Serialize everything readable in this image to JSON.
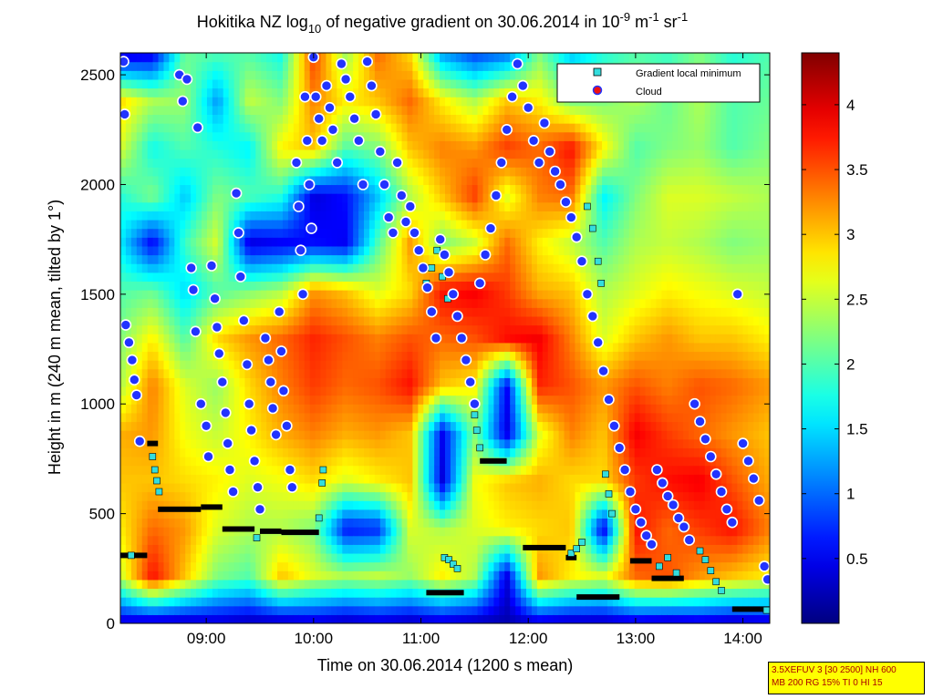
{
  "chart_data": {
    "type": "heatmap",
    "title": {
      "prefix": "Hokitika NZ log",
      "sub": "10",
      "middle": " of negative gradient on 30.06.2014 in 10",
      "sup1": "-9",
      "unit1": " m",
      "sup2": "-1",
      "unit2": " sr",
      "sup3": "-1"
    },
    "xlabel": "Time on 30.06.2014 (1200 s mean)",
    "ylabel": "Height in m (240 m mean, tilted by 1°)",
    "x_range_hours": [
      8.2,
      14.25
    ],
    "ylim": [
      0,
      2600
    ],
    "x_ticks": [
      {
        "value": 9,
        "label": "09:00"
      },
      {
        "value": 10,
        "label": "10:00"
      },
      {
        "value": 11,
        "label": "11:00"
      },
      {
        "value": 12,
        "label": "12:00"
      },
      {
        "value": 13,
        "label": "13:00"
      },
      {
        "value": 14,
        "label": "14:00"
      }
    ],
    "y_ticks": [
      {
        "value": 0,
        "label": "0"
      },
      {
        "value": 500,
        "label": "500"
      },
      {
        "value": 1000,
        "label": "1000"
      },
      {
        "value": 1500,
        "label": "1500"
      },
      {
        "value": 2000,
        "label": "2000"
      },
      {
        "value": 2500,
        "label": "2500"
      }
    ],
    "colorbar": {
      "range": [
        0,
        4.4
      ],
      "ticks": [
        {
          "value": 0.5,
          "label": "0.5"
        },
        {
          "value": 1,
          "label": "1"
        },
        {
          "value": 1.5,
          "label": "1.5"
        },
        {
          "value": 2,
          "label": "2"
        },
        {
          "value": 2.5,
          "label": "2.5"
        },
        {
          "value": 3,
          "label": "3"
        },
        {
          "value": 3.5,
          "label": "3.5"
        },
        {
          "value": 4,
          "label": "4"
        }
      ],
      "colormap": "jet"
    },
    "legend": {
      "position": "top-right",
      "entries": [
        {
          "label": "Gradient local minimum",
          "color": "#33dddd",
          "marker": "square"
        },
        {
          "label": "Cloud",
          "color": "#ee1111",
          "marker": "circle"
        }
      ]
    },
    "column_profiles": [
      {
        "t": 8.2,
        "v": [
          0.3,
          2.5,
          2.8,
          3.0,
          3.1,
          2.4,
          2.2,
          2.0,
          1.6,
          1.8,
          2.6,
          2.9,
          0.3
        ]
      },
      {
        "t": 8.5,
        "v": [
          0.2,
          3.8,
          3.4,
          3.0,
          3.2,
          3.3,
          2.8,
          2.1,
          0.5,
          2.2,
          1.7,
          2.4,
          0.4
        ]
      },
      {
        "t": 8.8,
        "v": [
          0.2,
          3.0,
          3.2,
          2.9,
          2.7,
          2.6,
          2.0,
          1.5,
          1.9,
          1.4,
          2.0,
          2.3,
          2.1
        ]
      },
      {
        "t": 9.1,
        "v": [
          0.3,
          2.2,
          2.6,
          2.8,
          2.5,
          2.3,
          2.9,
          2.0,
          2.6,
          2.2,
          1.8,
          1.2,
          2.0
        ]
      },
      {
        "t": 9.4,
        "v": [
          0.2,
          2.0,
          2.4,
          2.6,
          2.8,
          2.9,
          3.2,
          2.2,
          0.4,
          2.0,
          1.6,
          2.5,
          2.0
        ]
      },
      {
        "t": 9.7,
        "v": [
          0.2,
          3.0,
          2.4,
          2.7,
          3.1,
          3.3,
          3.4,
          2.4,
          0.5,
          1.8,
          2.8,
          2.2,
          1.7
        ]
      },
      {
        "t": 10.0,
        "v": [
          0.3,
          2.6,
          2.2,
          2.9,
          3.3,
          3.6,
          3.7,
          3.2,
          0.6,
          0.4,
          3.0,
          3.3,
          3.6
        ]
      },
      {
        "t": 10.3,
        "v": [
          0.2,
          2.4,
          0.6,
          2.6,
          3.1,
          3.4,
          3.5,
          3.0,
          0.5,
          0.6,
          2.0,
          2.8,
          2.3
        ]
      },
      {
        "t": 10.6,
        "v": [
          0.3,
          2.5,
          0.7,
          2.8,
          3.2,
          3.5,
          3.3,
          2.6,
          2.0,
          1.4,
          2.2,
          3.0,
          3.4
        ]
      },
      {
        "t": 10.9,
        "v": [
          0.2,
          2.3,
          2.6,
          3.0,
          3.0,
          3.8,
          3.5,
          2.9,
          3.2,
          2.4,
          3.0,
          3.4,
          2.9
        ]
      },
      {
        "t": 11.2,
        "v": [
          0.3,
          2.8,
          2.4,
          0.4,
          0.5,
          3.0,
          3.4,
          3.8,
          2.2,
          3.0,
          3.3,
          2.8,
          1.2
        ]
      },
      {
        "t": 11.5,
        "v": [
          0.2,
          2.4,
          2.6,
          2.7,
          2.2,
          2.8,
          3.5,
          3.9,
          2.5,
          3.6,
          3.2,
          2.4,
          0.8
        ]
      },
      {
        "t": 11.8,
        "v": [
          0.2,
          0.4,
          2.8,
          3.0,
          0.4,
          0.5,
          3.8,
          3.6,
          3.4,
          2.6,
          3.6,
          3.0,
          1.0
        ]
      },
      {
        "t": 12.1,
        "v": [
          0.3,
          3.2,
          2.9,
          3.1,
          2.6,
          3.7,
          3.9,
          3.1,
          2.8,
          3.3,
          3.4,
          2.8,
          2.2
        ]
      },
      {
        "t": 12.4,
        "v": [
          0.2,
          2.8,
          3.0,
          2.9,
          3.3,
          3.5,
          3.3,
          3.0,
          2.5,
          3.4,
          3.8,
          2.2,
          1.4
        ]
      },
      {
        "t": 12.7,
        "v": [
          0.2,
          2.6,
          0.4,
          2.9,
          3.0,
          3.2,
          2.6,
          2.4,
          2.0,
          1.6,
          2.8,
          2.2,
          1.8
        ]
      },
      {
        "t": 13.0,
        "v": [
          0.3,
          3.4,
          3.8,
          3.6,
          3.9,
          3.5,
          3.0,
          2.6,
          2.4,
          2.2,
          2.0,
          2.4,
          2.0
        ]
      },
      {
        "t": 13.3,
        "v": [
          0.2,
          3.5,
          3.4,
          3.8,
          3.6,
          3.3,
          3.2,
          2.8,
          2.5,
          2.6,
          2.2,
          2.1,
          1.9
        ]
      },
      {
        "t": 13.6,
        "v": [
          0.3,
          3.2,
          3.6,
          3.9,
          3.4,
          3.5,
          3.0,
          2.7,
          2.4,
          2.6,
          2.3,
          2.4,
          2.2
        ]
      },
      {
        "t": 13.9,
        "v": [
          0.2,
          3.0,
          3.8,
          3.5,
          3.2,
          3.4,
          3.0,
          2.6,
          2.2,
          2.5,
          2.0,
          2.0,
          1.8
        ]
      },
      {
        "t": 14.25,
        "v": [
          0.3,
          2.8,
          3.3,
          3.1,
          3.0,
          3.2,
          2.8,
          2.5,
          2.3,
          2.4,
          2.2,
          2.1,
          2.0
        ]
      }
    ],
    "gradient_minimum_segments": [
      {
        "t0": 8.2,
        "t1": 8.45,
        "h": 310
      },
      {
        "t0": 8.45,
        "t1": 8.55,
        "h": 820
      },
      {
        "t0": 8.55,
        "t1": 8.95,
        "h": 520
      },
      {
        "t0": 8.95,
        "t1": 9.15,
        "h": 530
      },
      {
        "t0": 9.15,
        "t1": 9.45,
        "h": 430
      },
      {
        "t0": 9.5,
        "t1": 9.7,
        "h": 420
      },
      {
        "t0": 9.7,
        "t1": 10.05,
        "h": 415
      },
      {
        "t0": 11.05,
        "t1": 11.4,
        "h": 140
      },
      {
        "t0": 11.55,
        "t1": 11.8,
        "h": 740
      },
      {
        "t0": 11.95,
        "t1": 12.35,
        "h": 345
      },
      {
        "t0": 12.35,
        "t1": 12.45,
        "h": 300
      },
      {
        "t0": 12.45,
        "t1": 12.85,
        "h": 120
      },
      {
        "t0": 12.95,
        "t1": 13.15,
        "h": 285
      },
      {
        "t0": 13.15,
        "t1": 13.45,
        "h": 205
      },
      {
        "t0": 13.9,
        "t1": 14.25,
        "h": 65
      }
    ],
    "gradient_minimum_points": [
      {
        "t": 8.3,
        "h": 310
      },
      {
        "t": 8.5,
        "h": 760
      },
      {
        "t": 8.52,
        "h": 700
      },
      {
        "t": 8.54,
        "h": 650
      },
      {
        "t": 8.56,
        "h": 600
      },
      {
        "t": 9.47,
        "h": 390
      },
      {
        "t": 10.05,
        "h": 480
      },
      {
        "t": 10.08,
        "h": 640
      },
      {
        "t": 10.09,
        "h": 700
      },
      {
        "t": 11.22,
        "h": 300
      },
      {
        "t": 11.26,
        "h": 290
      },
      {
        "t": 11.3,
        "h": 270
      },
      {
        "t": 11.34,
        "h": 250
      },
      {
        "t": 11.5,
        "h": 950
      },
      {
        "t": 11.52,
        "h": 880
      },
      {
        "t": 11.55,
        "h": 800
      },
      {
        "t": 12.4,
        "h": 320
      },
      {
        "t": 12.45,
        "h": 340
      },
      {
        "t": 12.5,
        "h": 370
      },
      {
        "t": 12.72,
        "h": 680
      },
      {
        "t": 12.75,
        "h": 590
      },
      {
        "t": 12.78,
        "h": 500
      },
      {
        "t": 13.22,
        "h": 260
      },
      {
        "t": 13.3,
        "h": 300
      },
      {
        "t": 13.38,
        "h": 230
      },
      {
        "t": 13.6,
        "h": 330
      },
      {
        "t": 13.65,
        "h": 290
      },
      {
        "t": 13.7,
        "h": 240
      },
      {
        "t": 13.75,
        "h": 190
      },
      {
        "t": 13.8,
        "h": 150
      },
      {
        "t": 11.05,
        "h": 1550
      },
      {
        "t": 11.1,
        "h": 1620
      },
      {
        "t": 11.15,
        "h": 1700
      },
      {
        "t": 11.2,
        "h": 1580
      },
      {
        "t": 11.25,
        "h": 1480
      },
      {
        "t": 12.55,
        "h": 1900
      },
      {
        "t": 12.6,
        "h": 1800
      },
      {
        "t": 12.65,
        "h": 1650
      },
      {
        "t": 12.68,
        "h": 1550
      },
      {
        "t": 14.22,
        "h": 60
      }
    ],
    "cloud_points": [
      {
        "t": 8.23,
        "h": 2560
      },
      {
        "t": 8.24,
        "h": 2320
      },
      {
        "t": 8.25,
        "h": 1360
      },
      {
        "t": 8.28,
        "h": 1280
      },
      {
        "t": 8.31,
        "h": 1200
      },
      {
        "t": 8.33,
        "h": 1110
      },
      {
        "t": 8.35,
        "h": 1040
      },
      {
        "t": 8.38,
        "h": 830
      },
      {
        "t": 8.75,
        "h": 2500
      },
      {
        "t": 8.78,
        "h": 2380
      },
      {
        "t": 8.82,
        "h": 2480
      },
      {
        "t": 8.86,
        "h": 1620
      },
      {
        "t": 8.88,
        "h": 1520
      },
      {
        "t": 8.9,
        "h": 1330
      },
      {
        "t": 8.92,
        "h": 2260
      },
      {
        "t": 8.95,
        "h": 1000
      },
      {
        "t": 9.0,
        "h": 900
      },
      {
        "t": 9.02,
        "h": 760
      },
      {
        "t": 9.05,
        "h": 1630
      },
      {
        "t": 9.08,
        "h": 1480
      },
      {
        "t": 9.1,
        "h": 1350
      },
      {
        "t": 9.12,
        "h": 1230
      },
      {
        "t": 9.15,
        "h": 1100
      },
      {
        "t": 9.18,
        "h": 960
      },
      {
        "t": 9.2,
        "h": 820
      },
      {
        "t": 9.22,
        "h": 700
      },
      {
        "t": 9.25,
        "h": 600
      },
      {
        "t": 9.28,
        "h": 1960
      },
      {
        "t": 9.3,
        "h": 1780
      },
      {
        "t": 9.32,
        "h": 1580
      },
      {
        "t": 9.35,
        "h": 1380
      },
      {
        "t": 9.38,
        "h": 1180
      },
      {
        "t": 9.4,
        "h": 1000
      },
      {
        "t": 9.42,
        "h": 880
      },
      {
        "t": 9.45,
        "h": 740
      },
      {
        "t": 9.48,
        "h": 620
      },
      {
        "t": 9.5,
        "h": 520
      },
      {
        "t": 9.55,
        "h": 1300
      },
      {
        "t": 9.58,
        "h": 1200
      },
      {
        "t": 9.6,
        "h": 1100
      },
      {
        "t": 9.62,
        "h": 980
      },
      {
        "t": 9.65,
        "h": 860
      },
      {
        "t": 9.68,
        "h": 1420
      },
      {
        "t": 9.7,
        "h": 1240
      },
      {
        "t": 9.72,
        "h": 1060
      },
      {
        "t": 9.75,
        "h": 900
      },
      {
        "t": 9.78,
        "h": 700
      },
      {
        "t": 9.8,
        "h": 620
      },
      {
        "t": 9.84,
        "h": 2100
      },
      {
        "t": 9.86,
        "h": 1900
      },
      {
        "t": 9.88,
        "h": 1700
      },
      {
        "t": 9.9,
        "h": 1500
      },
      {
        "t": 9.92,
        "h": 2400
      },
      {
        "t": 9.94,
        "h": 2200
      },
      {
        "t": 9.96,
        "h": 2000
      },
      {
        "t": 9.98,
        "h": 1800
      },
      {
        "t": 10.0,
        "h": 2580
      },
      {
        "t": 10.02,
        "h": 2400
      },
      {
        "t": 10.05,
        "h": 2300
      },
      {
        "t": 10.08,
        "h": 2200
      },
      {
        "t": 10.12,
        "h": 2450
      },
      {
        "t": 10.15,
        "h": 2350
      },
      {
        "t": 10.18,
        "h": 2250
      },
      {
        "t": 10.22,
        "h": 2100
      },
      {
        "t": 10.26,
        "h": 2550
      },
      {
        "t": 10.3,
        "h": 2480
      },
      {
        "t": 10.34,
        "h": 2400
      },
      {
        "t": 10.38,
        "h": 2300
      },
      {
        "t": 10.42,
        "h": 2200
      },
      {
        "t": 10.46,
        "h": 2000
      },
      {
        "t": 10.5,
        "h": 2560
      },
      {
        "t": 10.54,
        "h": 2450
      },
      {
        "t": 10.58,
        "h": 2320
      },
      {
        "t": 10.62,
        "h": 2150
      },
      {
        "t": 10.66,
        "h": 2000
      },
      {
        "t": 10.7,
        "h": 1850
      },
      {
        "t": 10.74,
        "h": 1780
      },
      {
        "t": 10.78,
        "h": 2100
      },
      {
        "t": 10.82,
        "h": 1950
      },
      {
        "t": 10.86,
        "h": 1830
      },
      {
        "t": 10.9,
        "h": 1900
      },
      {
        "t": 10.94,
        "h": 1780
      },
      {
        "t": 10.98,
        "h": 1700
      },
      {
        "t": 11.02,
        "h": 1620
      },
      {
        "t": 11.06,
        "h": 1530
      },
      {
        "t": 11.1,
        "h": 1420
      },
      {
        "t": 11.14,
        "h": 1300
      },
      {
        "t": 11.18,
        "h": 1750
      },
      {
        "t": 11.22,
        "h": 1680
      },
      {
        "t": 11.26,
        "h": 1600
      },
      {
        "t": 11.3,
        "h": 1500
      },
      {
        "t": 11.34,
        "h": 1400
      },
      {
        "t": 11.38,
        "h": 1300
      },
      {
        "t": 11.42,
        "h": 1200
      },
      {
        "t": 11.46,
        "h": 1100
      },
      {
        "t": 11.5,
        "h": 1000
      },
      {
        "t": 11.55,
        "h": 1550
      },
      {
        "t": 11.6,
        "h": 1680
      },
      {
        "t": 11.65,
        "h": 1800
      },
      {
        "t": 11.7,
        "h": 1950
      },
      {
        "t": 11.75,
        "h": 2100
      },
      {
        "t": 11.8,
        "h": 2250
      },
      {
        "t": 11.85,
        "h": 2400
      },
      {
        "t": 11.9,
        "h": 2550
      },
      {
        "t": 11.95,
        "h": 2450
      },
      {
        "t": 12.0,
        "h": 2350
      },
      {
        "t": 12.05,
        "h": 2200
      },
      {
        "t": 12.1,
        "h": 2100
      },
      {
        "t": 12.15,
        "h": 2280
      },
      {
        "t": 12.2,
        "h": 2150
      },
      {
        "t": 12.25,
        "h": 2060
      },
      {
        "t": 12.3,
        "h": 2000
      },
      {
        "t": 12.35,
        "h": 1920
      },
      {
        "t": 12.4,
        "h": 1850
      },
      {
        "t": 12.45,
        "h": 1760
      },
      {
        "t": 12.5,
        "h": 1650
      },
      {
        "t": 12.55,
        "h": 1500
      },
      {
        "t": 12.6,
        "h": 1400
      },
      {
        "t": 12.65,
        "h": 1280
      },
      {
        "t": 12.7,
        "h": 1150
      },
      {
        "t": 12.75,
        "h": 1020
      },
      {
        "t": 12.8,
        "h": 900
      },
      {
        "t": 12.85,
        "h": 800
      },
      {
        "t": 12.9,
        "h": 700
      },
      {
        "t": 12.95,
        "h": 600
      },
      {
        "t": 13.0,
        "h": 520
      },
      {
        "t": 13.05,
        "h": 460
      },
      {
        "t": 13.1,
        "h": 400
      },
      {
        "t": 13.15,
        "h": 360
      },
      {
        "t": 13.2,
        "h": 700
      },
      {
        "t": 13.25,
        "h": 640
      },
      {
        "t": 13.3,
        "h": 580
      },
      {
        "t": 13.35,
        "h": 540
      },
      {
        "t": 13.4,
        "h": 480
      },
      {
        "t": 13.45,
        "h": 440
      },
      {
        "t": 13.5,
        "h": 380
      },
      {
        "t": 13.55,
        "h": 1000
      },
      {
        "t": 13.6,
        "h": 920
      },
      {
        "t": 13.65,
        "h": 840
      },
      {
        "t": 13.7,
        "h": 760
      },
      {
        "t": 13.75,
        "h": 680
      },
      {
        "t": 13.8,
        "h": 600
      },
      {
        "t": 13.85,
        "h": 520
      },
      {
        "t": 13.9,
        "h": 460
      },
      {
        "t": 13.95,
        "h": 1500
      },
      {
        "t": 14.0,
        "h": 820
      },
      {
        "t": 14.05,
        "h": 740
      },
      {
        "t": 14.1,
        "h": 660
      },
      {
        "t": 14.15,
        "h": 560
      },
      {
        "t": 14.2,
        "h": 260
      },
      {
        "t": 14.23,
        "h": 200
      }
    ]
  },
  "info_box": {
    "line1": "3.5XEFUV 3 [30 2500] NH 600",
    "line2": "MB 200 RG 15% TI 0 HI 15"
  }
}
